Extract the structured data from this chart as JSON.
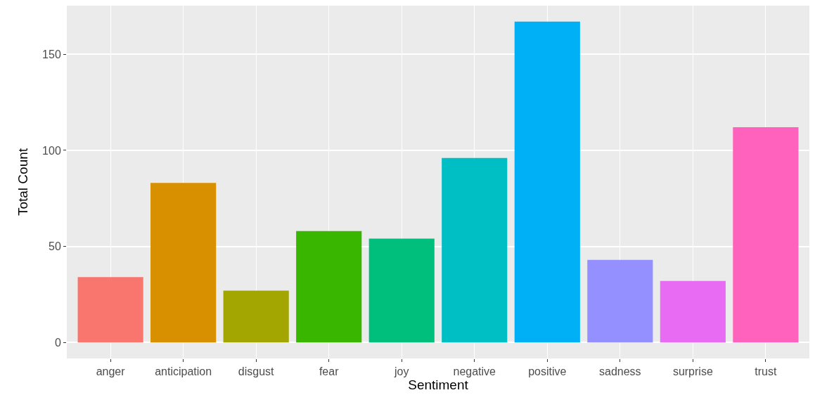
{
  "chart_data": {
    "type": "bar",
    "xlabel": "Sentiment",
    "ylabel": "Total Count",
    "categories": [
      "anger",
      "anticipation",
      "disgust",
      "fear",
      "joy",
      "negative",
      "positive",
      "sadness",
      "surprise",
      "trust"
    ],
    "values": [
      34,
      83,
      27,
      58,
      54,
      96,
      167,
      43,
      32,
      112
    ],
    "colors": [
      "#f8766d",
      "#d89000",
      "#a3a500",
      "#39b600",
      "#00bf7d",
      "#00bfc4",
      "#00b0f6",
      "#9590ff",
      "#e76bf3",
      "#ff62bc"
    ],
    "ylim": [
      -8.35,
      175.35
    ],
    "yticks": [
      0,
      50,
      100,
      150
    ],
    "grid": true
  }
}
